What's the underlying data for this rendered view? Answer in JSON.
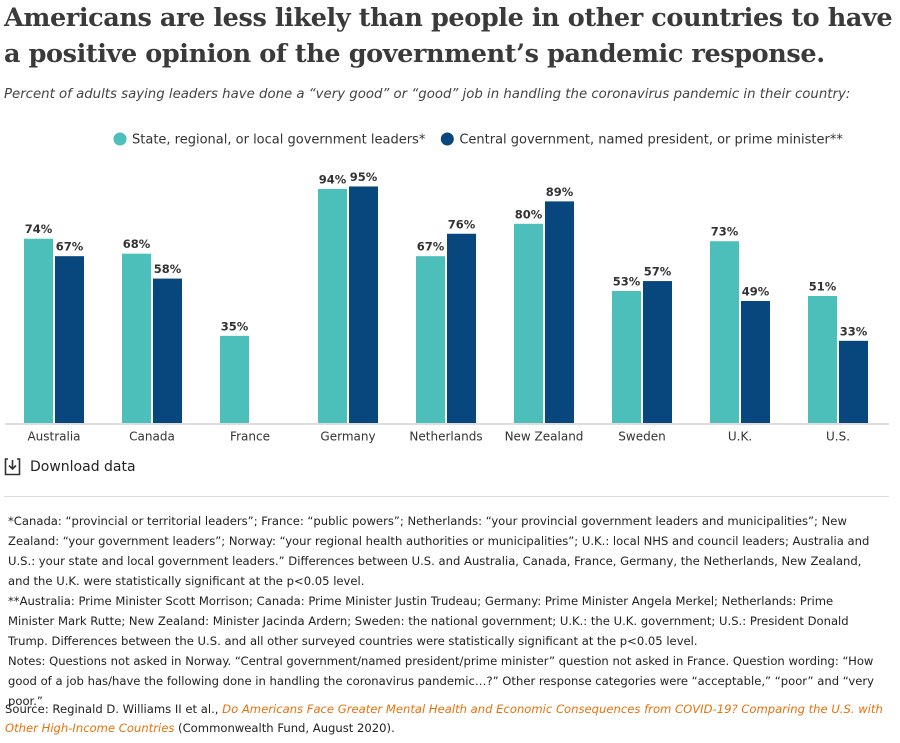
{
  "chart_data": {
    "type": "bar",
    "title": "Americans are less likely than people in other countries to have a positive opinion of the government’s pandemic response.",
    "subtitle": "Percent of adults saying leaders have done a “very good” or “good” job in handling the coronavirus pandemic in their country:",
    "categories": [
      "Australia",
      "Canada",
      "France",
      "Germany",
      "Netherlands",
      "New Zealand",
      "Sweden",
      "U.K.",
      "U.S."
    ],
    "series": [
      {
        "name": "State, regional, or local government leaders*",
        "color": "#4cbfbb",
        "values": [
          74,
          68,
          35,
          94,
          67,
          80,
          53,
          73,
          51
        ],
        "value_labels": [
          "74%",
          "68%",
          "35%",
          "94%",
          "67%",
          "80%",
          "53%",
          "73%",
          "51%"
        ]
      },
      {
        "name": "Central government, named president, or prime minister**",
        "color": "#08477d",
        "values": [
          67,
          58,
          null,
          95,
          76,
          89,
          57,
          49,
          33
        ],
        "value_labels": [
          "67%",
          "58%",
          null,
          "95%",
          "76%",
          "89%",
          "57%",
          "49%",
          "33%"
        ]
      }
    ],
    "ylim": [
      0,
      100
    ]
  },
  "download": "Download data",
  "notes": [
    "*Canada: “provincial or territorial leaders”; France: “public powers”; Netherlands: “your provincial government leaders and municipalities”; New Zealand: “your government leaders”; Norway: “your regional health authorities or municipalities”; U.K.: local NHS and council leaders; Australia and U.S.: your state and local government leaders.” Differences between U.S. and Australia, Canada, France, Germany, the Netherlands, New Zealand, and the U.K. were statistically significant at the p<0.05 level.",
    "**Australia: Prime Minister Scott Morrison; Canada: Prime Minister Justin Trudeau; Germany: Prime Minister Angela Merkel; Netherlands: Prime Minister Mark Rutte; New Zealand: Minister Jacinda Ardern; Sweden: the national government; U.K.: the U.K. government; U.S.: President Donald Trump. Differences between the U.S. and all other surveyed countries were  statistically significant at the p<0.05 level.",
    "Notes: Questions not asked in Norway. “Central government/named president/prime minister” question not asked in France. Question wording: “How good of a job has/have the following done in handling the coronavirus pandemic…?” Other response categories were “acceptable,” “poor” and “very poor.”"
  ],
  "source": {
    "prefix": "Source: Reginald D. Williams II et al., ",
    "link": "Do Americans Face Greater Mental Health and Economic Consequences from COVID-19? Comparing the U.S. with Other High-Income Countries",
    "suffix": " (Commonwealth Fund, August 2020)."
  }
}
